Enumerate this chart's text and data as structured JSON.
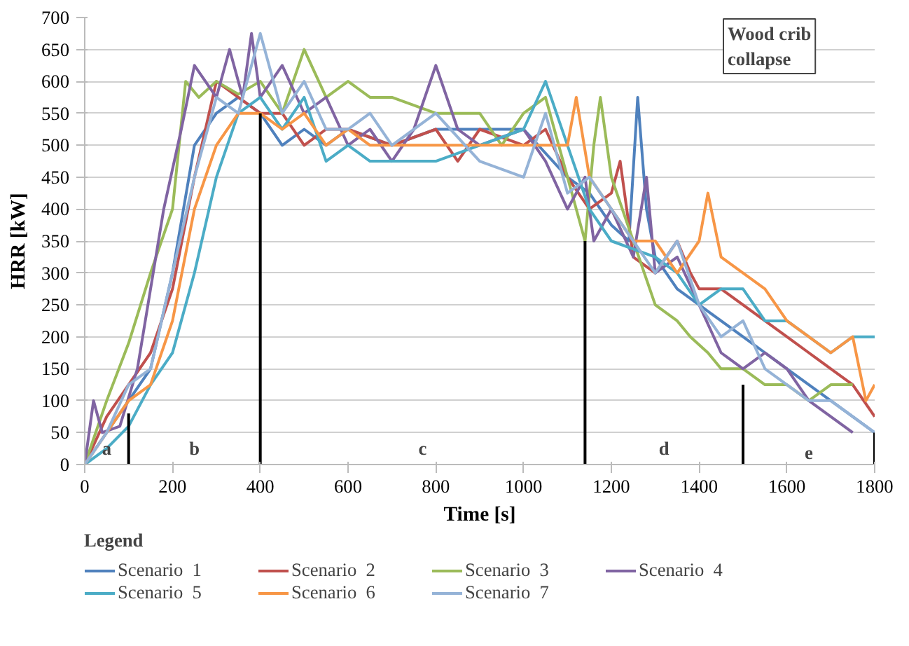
{
  "chart_data": {
    "type": "line",
    "xlabel": "Time [s]",
    "ylabel": "HRR [kW]",
    "legend_title": "Legend",
    "legend": "bottom",
    "grid": "y",
    "xlim": [
      0,
      1800
    ],
    "ylim": [
      0,
      700
    ],
    "xticks": [
      0,
      200,
      400,
      600,
      800,
      1000,
      1200,
      1400,
      1600,
      1800
    ],
    "yticks": [
      0,
      50,
      100,
      150,
      200,
      250,
      300,
      350,
      400,
      450,
      500,
      550,
      600,
      650,
      700
    ],
    "annotations": [
      "a",
      "b",
      "c",
      "d",
      "e",
      "Wood crib collapse"
    ],
    "series": [
      {
        "name": "Scenario  1",
        "color": "#4f81bd",
        "x": [
          0,
          50,
          100,
          150,
          200,
          250,
          300,
          350,
          400,
          450,
          500,
          550,
          600,
          700,
          800,
          900,
          1000,
          1100,
          1150,
          1200,
          1240,
          1260,
          1280,
          1300,
          1350,
          1400,
          1450,
          1500,
          1550,
          1600,
          1650,
          1700,
          1750,
          1800
        ],
        "values": [
          0,
          50,
          100,
          150,
          300,
          500,
          550,
          575,
          550,
          500,
          525,
          500,
          525,
          500,
          525,
          525,
          525,
          450,
          425,
          375,
          350,
          575,
          400,
          325,
          275,
          250,
          225,
          200,
          175,
          150,
          125,
          100,
          75,
          50
        ]
      },
      {
        "name": "Scenario  2",
        "color": "#c0504d",
        "x": [
          0,
          50,
          100,
          150,
          200,
          250,
          300,
          350,
          400,
          450,
          500,
          550,
          600,
          700,
          800,
          850,
          900,
          1000,
          1050,
          1100,
          1150,
          1200,
          1220,
          1250,
          1300,
          1350,
          1380,
          1400,
          1450,
          1500,
          1550,
          1600,
          1650,
          1700,
          1750,
          1800
        ],
        "values": [
          0,
          75,
          125,
          175,
          275,
          450,
          600,
          575,
          550,
          550,
          500,
          525,
          525,
          500,
          525,
          475,
          525,
          500,
          525,
          450,
          400,
          425,
          475,
          325,
          300,
          350,
          300,
          275,
          275,
          250,
          225,
          200,
          175,
          150,
          125,
          75
        ]
      },
      {
        "name": "Scenario  3",
        "color": "#9bbb59",
        "x": [
          0,
          50,
          100,
          150,
          200,
          230,
          260,
          300,
          350,
          400,
          450,
          500,
          550,
          600,
          650,
          700,
          800,
          900,
          950,
          1000,
          1050,
          1100,
          1140,
          1160,
          1175,
          1200,
          1250,
          1300,
          1350,
          1380,
          1420,
          1450,
          1500,
          1550,
          1600,
          1650,
          1700,
          1750
        ],
        "values": [
          0,
          100,
          190,
          300,
          400,
          600,
          575,
          600,
          580,
          600,
          550,
          650,
          575,
          600,
          575,
          575,
          550,
          550,
          500,
          550,
          575,
          450,
          350,
          500,
          575,
          450,
          350,
          250,
          225,
          200,
          175,
          150,
          150,
          125,
          125,
          100,
          125,
          125
        ]
      },
      {
        "name": "Scenario  4",
        "color": "#8064a2",
        "x": [
          0,
          20,
          40,
          80,
          120,
          180,
          220,
          250,
          300,
          330,
          360,
          380,
          400,
          450,
          500,
          550,
          600,
          650,
          700,
          750,
          800,
          850,
          900,
          1000,
          1050,
          1100,
          1140,
          1160,
          1200,
          1250,
          1280,
          1300,
          1350,
          1400,
          1450,
          1500,
          1550,
          1600,
          1650,
          1700,
          1750
        ],
        "values": [
          0,
          100,
          50,
          60,
          150,
          400,
          525,
          625,
          575,
          650,
          575,
          675,
          575,
          625,
          550,
          575,
          500,
          525,
          475,
          525,
          625,
          525,
          500,
          525,
          475,
          400,
          450,
          350,
          400,
          325,
          450,
          300,
          325,
          250,
          175,
          150,
          175,
          150,
          100,
          75,
          50
        ]
      },
      {
        "name": "Scenario  5",
        "color": "#4bacc6",
        "x": [
          0,
          50,
          100,
          150,
          200,
          250,
          300,
          350,
          400,
          450,
          500,
          550,
          600,
          650,
          700,
          800,
          900,
          1000,
          1050,
          1100,
          1150,
          1200,
          1300,
          1350,
          1400,
          1450,
          1500,
          1550,
          1600,
          1650,
          1700,
          1750,
          1800
        ],
        "values": [
          0,
          25,
          60,
          125,
          175,
          300,
          450,
          550,
          575,
          525,
          575,
          475,
          500,
          475,
          475,
          475,
          500,
          525,
          600,
          500,
          400,
          350,
          325,
          300,
          250,
          275,
          275,
          225,
          225,
          200,
          175,
          200,
          200
        ]
      },
      {
        "name": "Scenario  6",
        "color": "#f79646",
        "x": [
          0,
          50,
          100,
          150,
          200,
          250,
          300,
          350,
          400,
          450,
          500,
          550,
          600,
          650,
          700,
          800,
          900,
          1000,
          1100,
          1120,
          1150,
          1200,
          1250,
          1300,
          1350,
          1400,
          1420,
          1450,
          1500,
          1550,
          1600,
          1650,
          1700,
          1750,
          1780,
          1800
        ],
        "values": [
          0,
          50,
          100,
          125,
          225,
          400,
          500,
          550,
          550,
          525,
          550,
          500,
          525,
          500,
          500,
          500,
          500,
          500,
          500,
          575,
          450,
          400,
          350,
          350,
          300,
          350,
          425,
          325,
          300,
          275,
          225,
          200,
          175,
          200,
          100,
          125
        ]
      },
      {
        "name": "Scenario  7",
        "color": "#95b3d7",
        "x": [
          0,
          50,
          100,
          150,
          200,
          250,
          300,
          350,
          400,
          450,
          500,
          550,
          600,
          650,
          700,
          800,
          900,
          1000,
          1050,
          1100,
          1150,
          1200,
          1250,
          1300,
          1350,
          1400,
          1450,
          1500,
          1550,
          1600,
          1650,
          1700,
          1750,
          1800
        ],
        "values": [
          0,
          50,
          125,
          150,
          300,
          450,
          575,
          550,
          675,
          550,
          600,
          525,
          525,
          550,
          500,
          550,
          475,
          450,
          550,
          425,
          450,
          400,
          350,
          300,
          350,
          250,
          200,
          225,
          150,
          125,
          100,
          100,
          75,
          50
        ]
      },
      {
        "color": "#000000",
        "x": [
          100,
          100
        ],
        "values": [
          0,
          80
        ]
      },
      {
        "color": "#000000",
        "x": [
          400,
          400
        ],
        "values": [
          0,
          550
        ]
      },
      {
        "color": "#000000",
        "x": [
          1140,
          1140
        ],
        "values": [
          0,
          350
        ]
      },
      {
        "color": "#000000",
        "x": [
          1500,
          1500
        ],
        "values": [
          0,
          125
        ]
      },
      {
        "color": "#000000",
        "x": [
          1800,
          1800
        ],
        "values": [
          0,
          50
        ]
      }
    ]
  }
}
